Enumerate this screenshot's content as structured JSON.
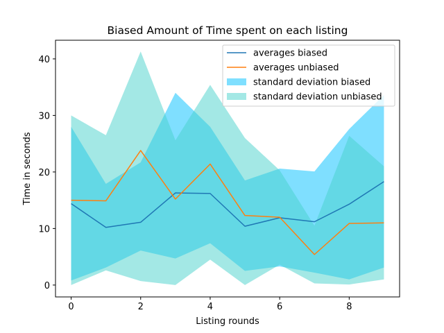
{
  "chart_data": {
    "type": "line",
    "title": "Biased Amount of Time spent on each listing",
    "xlabel": "Listing rounds",
    "ylabel": "Time in seconds",
    "x": [
      0,
      1,
      2,
      3,
      4,
      5,
      6,
      7,
      8,
      9
    ],
    "xlim": [
      -0.45,
      9.45
    ],
    "ylim": [
      -2.1,
      43.3
    ],
    "xticks": [
      0,
      2,
      4,
      6,
      8
    ],
    "yticks": [
      0,
      10,
      20,
      30,
      40
    ],
    "grid": false,
    "legend_position": "upper right",
    "series": [
      {
        "name": "averages biased",
        "kind": "line",
        "color": "#1f77b4",
        "values": [
          14.4,
          10.2,
          11.1,
          16.3,
          16.2,
          10.4,
          11.9,
          11.2,
          14.3,
          18.3
        ]
      },
      {
        "name": "averages unbiased",
        "kind": "line",
        "color": "#ff7f0e",
        "values": [
          15.0,
          14.9,
          23.8,
          15.2,
          21.4,
          12.3,
          12.0,
          5.4,
          10.9,
          11.0
        ]
      },
      {
        "name": "standard deviation biased",
        "kind": "band",
        "color": "#00bfff",
        "opacity": 0.5,
        "lower": [
          0.8,
          3.1,
          6.1,
          4.7,
          7.4,
          2.5,
          3.3,
          2.2,
          1.0,
          3.1
        ],
        "upper": [
          28.0,
          17.9,
          21.7,
          34.0,
          28.0,
          18.5,
          20.6,
          20.1,
          27.6,
          33.6
        ]
      },
      {
        "name": "standard deviation unbiased",
        "kind": "band",
        "color": "#48d1cc",
        "opacity": 0.5,
        "lower": [
          0.0,
          2.6,
          0.7,
          0.0,
          4.5,
          0.0,
          3.6,
          0.3,
          0.1,
          1.0
        ],
        "upper": [
          30.0,
          26.5,
          41.3,
          25.6,
          35.4,
          26.0,
          20.3,
          10.5,
          26.4,
          21.0
        ]
      }
    ]
  }
}
